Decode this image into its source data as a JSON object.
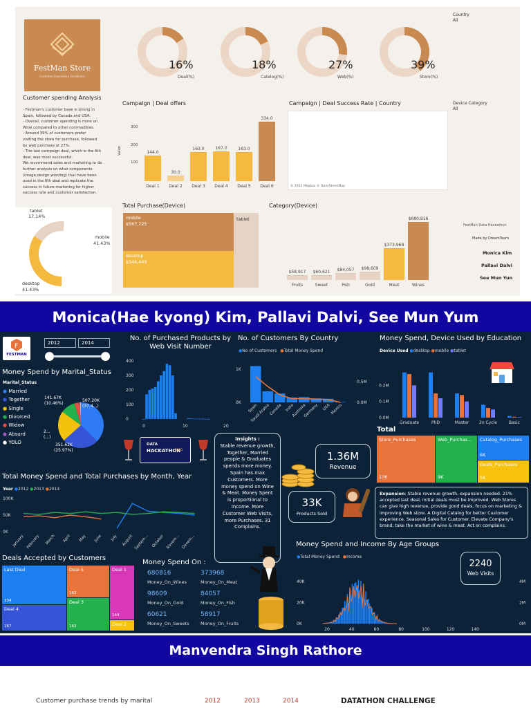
{
  "top": {
    "logo": {
      "name": "FestMan Store",
      "tagline": "Customer Experience Excellence"
    },
    "analysis": {
      "title": "Customer spending Analysis",
      "lines": [
        "- Festman's customer base is strong in",
        "Spain, followed by Canada and USA.",
        "- Overall, customer spending is more on",
        "Wine compared to other commodities.",
        "- Around 39% of customers prefer",
        "visiting the store for purchase, followed",
        "by web purchase at 27%.",
        "- The last campaign deal, which is the 6th",
        "deal, was most successful.",
        "We recommend sales and marketing to do",
        "further analysis on what components",
        "(image,design,wording) that have been",
        "used in the 6th deal and replicate the",
        "success in future marketing for higher",
        "success rate and customer satisfaction."
      ]
    },
    "kpis": [
      {
        "value": 16,
        "text": "16%",
        "label": "Deal(%)"
      },
      {
        "value": 18,
        "text": "18%",
        "label": "Catelog(%)"
      },
      {
        "value": 27,
        "text": "27%",
        "label": "Web(%)"
      },
      {
        "value": 39,
        "text": "39%",
        "label": "Store(%)"
      }
    ],
    "filters": {
      "country_label": "Country",
      "country_value": "All",
      "device_label": "Device Category",
      "device_value": "All"
    },
    "campaign": {
      "title": "Campaign | Deal offers",
      "ylabel": "Value",
      "ticks": [
        "300",
        "200",
        "100"
      ],
      "categories": [
        "Deal 1",
        "Deal 2",
        "Deal 3",
        "Deal 4",
        "Deal 5",
        "Deal 6"
      ],
      "values": [
        144,
        30,
        163,
        167,
        163,
        334
      ],
      "labels": [
        "144.0",
        "30.0",
        "163.0",
        "167.0",
        "163.0",
        "334.0"
      ]
    },
    "map": {
      "title": "Campaign | Deal Success Rate | Country",
      "credit": "© 2021 Mapbox © OpenStreetMap"
    },
    "device_donut": {
      "tablet_label": "tablet",
      "tablet_pct": "17.14%",
      "mobile_label": "mobile",
      "mobile_pct": "41.43%",
      "desktop_label": "desktop",
      "desktop_pct": "41.43%"
    },
    "total_purchase": {
      "title": "Total Purchase(Device)",
      "mobile": "mobile",
      "mobile_val": "$567,725",
      "desktop": "desktop",
      "desktop_val": "$546,449",
      "tablet": "tablet"
    },
    "category": {
      "title": "Category(Device)",
      "categories": [
        "Fruits",
        "Sweet",
        "Fish",
        "Gold",
        "Meat",
        "Wines"
      ],
      "values": [
        58917,
        60621,
        84057,
        98609,
        373968,
        680816
      ],
      "labels": [
        "$58,917",
        "$60,621",
        "$84,057",
        "$98,609",
        "$373,968",
        "$680,816"
      ]
    },
    "credits": {
      "event": "FestMan Data Hackathon",
      "made_by": "Made by DreamTeam",
      "names": [
        "Monica Kim",
        "Pallavi Dalvi",
        "See Mun Yun"
      ]
    }
  },
  "banner1": "Monica(Hae kyong) Kim, Pallavi Dalvi, See Mun Yum",
  "banner2": "Manvendra Singh Rathore",
  "dark": {
    "logo": "FESTMAN",
    "year_from": "2012",
    "year_to": "2014",
    "marital": {
      "title": "Money Spend by Marital_Status",
      "legend_title": "Marital_Status",
      "items": [
        "Married",
        "Together",
        "Single",
        "Divorced",
        "Widow",
        "Absurd",
        "YOLO"
      ],
      "colors": [
        "#2f7bf6",
        "#3555d6",
        "#f4c20d",
        "#23b14d",
        "#e74c3c",
        "#9b59b6",
        "#ffffff"
      ],
      "label_a": "141.67K",
      "label_a2": "(10.46%)",
      "label_b": "507.20K",
      "label_b2": "(37.4...)",
      "label_c": "351.62K",
      "label_c2": "(25.97%)",
      "label_d": "2...",
      "label_d2": "(...)"
    },
    "hackathon": {
      "line1": "DATA",
      "line2": "HACKATHON",
      "year": "2021"
    },
    "web": {
      "title": "No. of Purchased Products by Web Visit Number",
      "yticks": [
        "400",
        "300",
        "200",
        "100",
        "0"
      ],
      "xticks": [
        "0",
        "10",
        "20"
      ]
    },
    "country": {
      "title": "No. of Customers By Country",
      "legend_a": "No of Customers",
      "legend_b": "Total Money Spend",
      "yleft": [
        "1K",
        "0K"
      ],
      "yright": [
        "0.5M",
        "0.0M"
      ],
      "categories": [
        "Spain",
        "Saudi Arabia",
        "Canada",
        "India",
        "Australia",
        "Germany",
        "USA",
        "Mexico"
      ],
      "customers": [
        1095,
        337,
        268,
        148,
        160,
        120,
        109,
        3
      ],
      "spend": [
        0.62,
        0.38,
        0.18,
        0.09,
        0.09,
        0.08,
        0.07,
        0.0
      ]
    },
    "education": {
      "title": "Money Spend, Device Used by Education",
      "legend_title": "Device Used",
      "legend": [
        "desktop",
        "mobile",
        "tablet"
      ],
      "yticks": [
        "0.2M",
        "0.1M",
        "0.0M"
      ],
      "categories": [
        "Graduate",
        "PhD",
        "Master",
        "2n Cycle",
        "Basic"
      ],
      "desktop": [
        0.28,
        0.28,
        0.15,
        0.08,
        0.01
      ],
      "mobile": [
        0.27,
        0.15,
        0.14,
        0.06,
        0.005
      ],
      "tablet": [
        0.2,
        0.12,
        0.1,
        0.05,
        0.003
      ]
    },
    "insights": {
      "title": "Insights :",
      "lines": [
        "Stable revenue growth,",
        "Together, Married",
        "people & Graduates",
        "spends more money.",
        "Spain has max",
        "Customers. More",
        "money spend on Wine",
        "& Meat. Money Spent",
        "is proportional to",
        "Income. More",
        "Customer Web Visits,",
        "more Purchases. 31",
        "Complains."
      ]
    },
    "revenue": {
      "value": "1.36M",
      "label": "Revenue"
    },
    "products": {
      "value": "33K",
      "label": "Products Sold"
    },
    "web_visits": {
      "value": "2240",
      "label": "Web Visits"
    },
    "total": {
      "title": "Total",
      "store": "Store_Purchases",
      "store_val": "13K",
      "web": "Web_Purchas...",
      "web_val": "9K",
      "catalog": "Catalog_Purchases",
      "catalog_val": "6K",
      "deals": "Deals_Purchases",
      "deals_val": "5K"
    },
    "expansion": {
      "label": "Expansion",
      "text": ": Stable revenue growth, expansion needed. 21% accepted last deal, initial deals must be improved. Web Stores can give high revenue, provide good deals, focus on marketing & improving Web store. A Digital Catalog for better Customer experience. Seasonal Sales for Customer. Elevate Company's brand, take the market of wine & meat. Act on complains."
    },
    "monthly": {
      "title": "Total Money Spend and Total Purchases by Month, Year",
      "legend_title": "Year",
      "legend": [
        "2012",
        "2013",
        "2014"
      ],
      "yticks": [
        "100K",
        "50K",
        "0K"
      ],
      "months": [
        "January",
        "February",
        "March",
        "April",
        "May",
        "June",
        "July",
        "August",
        "Septem...",
        "October",
        "Novem...",
        "Decem..."
      ],
      "y2012": [
        null,
        null,
        null,
        null,
        null,
        null,
        10,
        85,
        62,
        58,
        55,
        50
      ],
      "y2013": [
        55,
        52,
        58,
        55,
        60,
        55,
        58,
        52,
        55,
        60,
        58,
        55
      ],
      "y2014": [
        45,
        48,
        42,
        50,
        45,
        38,
        null,
        null,
        null,
        null,
        null,
        null
      ]
    },
    "deals": {
      "title": "Deals Accepted by Customers",
      "last": "Last Deal",
      "last_val": "334",
      "d5": "Deal 5",
      "d5_val": "163",
      "d1": "Deal 1",
      "d1_val": "144",
      "d3": "Deal 3",
      "d3_val": "163",
      "d4": "Deal 4",
      "d4_val": "167",
      "d2": "Deal 2"
    },
    "money_on": {
      "title": "Money Spend On :",
      "items": [
        {
          "value": "680816",
          "label": "Money_On_Wines"
        },
        {
          "value": "373968",
          "label": "Money_On_Meat"
        },
        {
          "value": "98609",
          "label": "Money_On_Gold"
        },
        {
          "value": "84057",
          "label": "Money_On_Fish"
        },
        {
          "value": "60621",
          "label": "Money_On_Sweets"
        },
        {
          "value": "58917",
          "label": "Money_On_Fruits"
        }
      ]
    },
    "age": {
      "title": "Money Spend and Income By Age Groups",
      "legend": [
        "Total Money Spend",
        "Income"
      ],
      "yleft": [
        "40K",
        "20K",
        "0K"
      ],
      "yright": [
        "4M",
        "2M",
        "0M"
      ],
      "xticks": [
        "20",
        "40",
        "60",
        "80",
        "100",
        "120",
        "140"
      ]
    }
  },
  "bottom": {
    "left": "Customer purchase trends by marital",
    "years": [
      "2012",
      "2013",
      "2014"
    ],
    "right": "DATATHON CHALLENGE"
  },
  "colors": {
    "tan": "#c98a52",
    "gold": "#f6b940",
    "navy": "#1106a0",
    "dark": "#0b2238",
    "blue": "#1e7ff0",
    "orange": "#e8743b"
  }
}
